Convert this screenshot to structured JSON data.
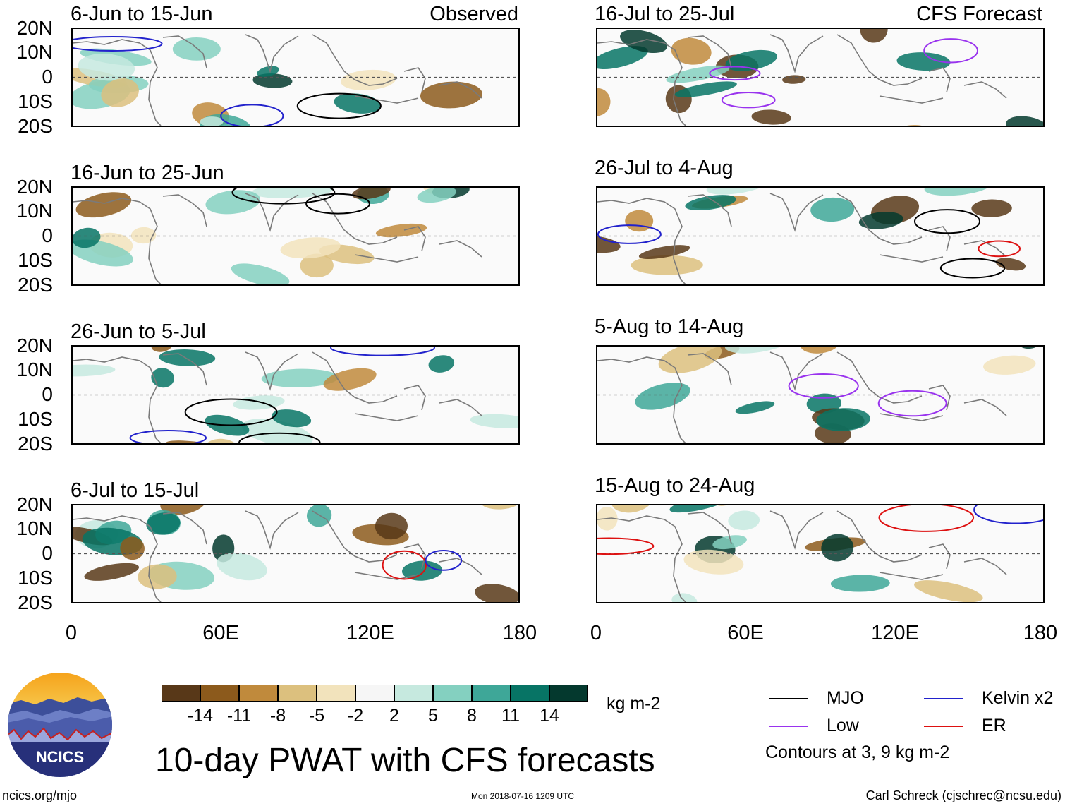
{
  "observed_tag": "Observed",
  "forecast_tag": "CFS Forecast",
  "panels_left": [
    {
      "title": "6-Jun to 15-Jun"
    },
    {
      "title": "16-Jun to 25-Jun"
    },
    {
      "title": "26-Jun to 5-Jul"
    },
    {
      "title": "6-Jul to 15-Jul"
    }
  ],
  "panels_right": [
    {
      "title": "16-Jul to 25-Jul"
    },
    {
      "title": "26-Jul to 4-Aug"
    },
    {
      "title": "5-Aug to 14-Aug"
    },
    {
      "title": "15-Aug to 24-Aug"
    }
  ],
  "lat_labels": [
    "20N",
    "10N",
    "0",
    "10S",
    "20S"
  ],
  "lon_labels": [
    "0",
    "60E",
    "120E",
    "180"
  ],
  "colorbar": {
    "units": "kg m-2",
    "colors": [
      "#583818",
      "#8c5a1c",
      "#c08a3c",
      "#dcc07e",
      "#f2e3bc",
      "#f6f6f6",
      "#c6e9df",
      "#84d0c0",
      "#3ea798",
      "#077465",
      "#04392e"
    ],
    "ticks": [
      "-14",
      "-11",
      "-8",
      "-5",
      "-2",
      "2",
      "5",
      "8",
      "11",
      "14"
    ]
  },
  "legend": {
    "items": [
      {
        "name": "MJO",
        "color": "#000000"
      },
      {
        "name": "Kelvin x2",
        "color": "#2222cc"
      },
      {
        "name": "Low",
        "color": "#9933ee"
      },
      {
        "name": "ER",
        "color": "#dd1111"
      }
    ],
    "note": "Contours at 3, 9 kg m-2"
  },
  "main_title": "10-day PWAT with CFS forecasts",
  "logo_text": "NCICS",
  "footer_left": "ncics.org/mjo",
  "footer_center": "Mon 2018-07-16 1209 UTC",
  "footer_right": "Carl Schreck (cjschrec@ncsu.edu)"
}
